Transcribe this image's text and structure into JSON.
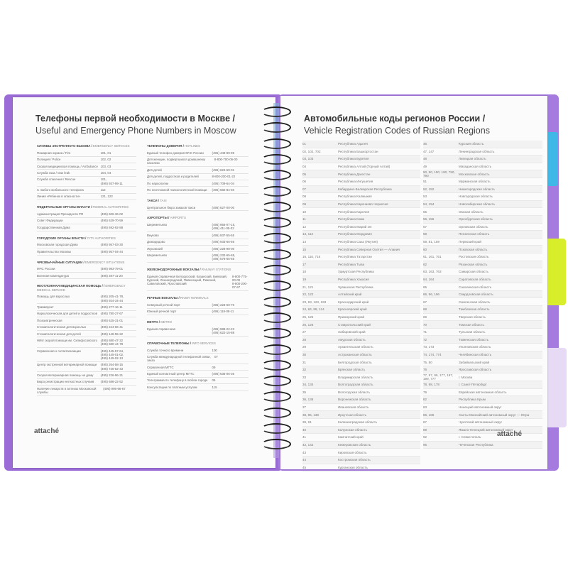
{
  "colors": {
    "cover": "#9b6cd6",
    "tab_blue": "#3fb8e8",
    "tab_yellow": "#d9ee2a",
    "tab_lilac": "#e6daf5"
  },
  "left_page": {
    "title_ru": "Телефоны первой необходимости в Москве /",
    "title_en": "Useful and Emergency Phone Numbers in Moscow",
    "logo": "attaché",
    "col1": [
      {
        "ru": "СЛУЖБЫ ЭКСТРЕННОГО ВЫЗОВА",
        "en": "EMERGENCY SERVICES",
        "rows": [
          [
            "Пожарная охрана / Fire",
            "101, 01"
          ],
          [
            "Полиция / Police",
            "102, 02"
          ],
          [
            "Скорая медицинская помощь / Ambulance",
            "103, 03"
          ],
          [
            "Служба газа / Gas leak",
            "104, 04"
          ],
          [
            "Служба спасения / Rescue",
            "101,\n(495) 937-99-11"
          ],
          [
            "С любого мобильного телефона",
            "112"
          ],
          [
            "Линия «Ребенок в опасности»",
            "121, 123"
          ]
        ]
      },
      {
        "ru": "ФЕДЕРАЛЬНЫЕ ОРГАНЫ ВЛАСТИ",
        "en": "FEDERAL AUTHORITIES",
        "rows": [
          [
            "Администрация Президента РФ",
            "(495) 606-36-02"
          ],
          [
            "Совет Федерации",
            "(495) 629-70-59"
          ],
          [
            "Государственная Дума",
            "(495) 692-92-88"
          ]
        ]
      },
      {
        "ru": "ГОРОДСКИЕ ОРГАНЫ ВЛАСТИ",
        "en": "CITY AUTHORITIES",
        "rows": [
          [
            "Московская городская Дума",
            "(495) 957-03-30"
          ],
          [
            "Правительство Москвы",
            "(495) 957-04-44"
          ]
        ]
      },
      {
        "ru": "ЧРЕЗВЫЧАЙНЫЕ СИТУАЦИИ",
        "en": "EMERGENCY SITUATIONS",
        "rows": [
          [
            "МЧС России",
            "(495) 983-79-01"
          ],
          [
            "Военная комендатура",
            "(495) 287-11-20"
          ]
        ]
      },
      {
        "ru": "НЕОТЛОЖНАЯ МЕДИЦИНСКАЯ ПОМОЩЬ /",
        "en": "EMERGENCY MEDICAL SERVICE",
        "rows": [
          [
            "Помощь для взрослых",
            "(495) 205-41-78,\n(495) 924-34-44"
          ],
          [
            "Травмпункт",
            "(495) 277-16-11"
          ],
          [
            "Наркологическая для детей и подростков",
            "(495) 780-27-67"
          ],
          [
            "Психиатрическая",
            "(495) 625-31-01"
          ],
          [
            "Стоматологическая для взрослых",
            "(495) 244-66-41"
          ],
          [
            "Стоматологическая для детей",
            "(495) 148-55-22"
          ],
          [
            "НИИ скорой помощи им. Склифосовского",
            "(495) 680-47-22\n(495) 680-44-78"
          ],
          [
            "Справочная о госпитализации",
            "(495) 445-57-64,\n(495) 445-01-02,\n(495) 445-02-13"
          ],
          [
            "Центр экстренной ветеринарной помощи",
            "(495) 264-58-15\n(495) 726-52-43"
          ],
          [
            "Скорая ветеринарная помощь на дому",
            "(495) 226-96-31"
          ],
          [
            "Бюро регистрации несчастных случаев",
            "(495) 688-22-52"
          ],
          [
            "Наличие лекарств в аптеках Московской службы",
            "(495) 995-66-67"
          ]
        ]
      }
    ],
    "col2": [
      {
        "ru": "ТЕЛЕФОНЫ ДОВЕРИЯ",
        "en": "HOTLINES",
        "rows": [
          [
            "Единый телефон доверия МЧС России",
            "(495) 449-99-99"
          ],
          [
            "Для женщин, подвергшихся домашнему насилию",
            "8-800-700-06-00"
          ],
          [
            "Для детей",
            "(495) 624-60-01"
          ],
          [
            "Для детей, подростков и родителей",
            "8-800-200-01-22"
          ],
          [
            "По наркологии",
            "(495) 709-64-04"
          ],
          [
            "По неотложной психологической помощи",
            "(495) 682-84-50"
          ]
        ]
      },
      {
        "ru": "ТАКСИ",
        "en": "TAXI",
        "rows": [
          [
            "Центральное бюро заказов такси",
            "(495) 627-00-00"
          ]
        ]
      },
      {
        "ru": "АЭРОПОРТЫ",
        "en": "AIRPORTS",
        "rows": [
          [
            "Шереметьево",
            "(495) 956-07-15,\n(495) 411-05-32"
          ],
          [
            "Внуково",
            "(495) 937-55-55"
          ],
          [
            "Домодедово",
            "(495) 933-66-66"
          ],
          [
            "Жуковский",
            "(495) 228-98-00"
          ],
          [
            "Шереметьево",
            "(495) 232-65-65,\n(495) 578-65-65"
          ]
        ]
      },
      {
        "ru": "ЖЕЛЕЗНОДОРОЖНЫЕ ВОКЗАЛЫ",
        "en": "RAILWAY STATIONS",
        "rows": [
          [
            "Единая справочная Белорусский, Казанский, Киевский, Курский, Ленинградский, Павелецкий, Рижский, Савеловский, Ярославский",
            "8-800-775-00-00\n8-800-200-07-67"
          ]
        ]
      },
      {
        "ru": "РЕЧНЫЕ ВОКЗАЛЫ",
        "en": "RIVER TERMINALS",
        "rows": [
          [
            "Северный речной порт",
            "(495) 223-60-70"
          ],
          [
            "Южный речной порт",
            "(495) 118-08-11"
          ]
        ]
      },
      {
        "ru": "МЕТРО",
        "en": "METRO",
        "rows": [
          [
            "Единая справочная",
            "(495) 988-22-23\n(495) 622-15-88"
          ]
        ]
      },
      {
        "ru": "СПРАВОЧНЫЕ ТЕЛЕФОНЫ",
        "en": "INFO SERVICES",
        "rows": [
          [
            "Служба точного времени",
            "100"
          ],
          [
            "Служба международной телефонной связи, заказ",
            "07"
          ],
          [
            "Справочная МГТС",
            "09"
          ],
          [
            "Единый контактный центр МГТС",
            "(495) 636-06-36"
          ],
          [
            "Телеграмма по телефону в любом городе",
            "06"
          ],
          [
            "Консультации по платным услугам",
            "115"
          ]
        ]
      }
    ]
  },
  "right_page": {
    "title_ru": "Автомобильные коды регионов России /",
    "title_en": "Vehicle Registration Codes of Russian Regions",
    "logo": "attaché",
    "col1": [
      [
        "01",
        "Республика Адыгея"
      ],
      [
        "02, 102, 702",
        "Республика Башкортостан"
      ],
      [
        "03, 103",
        "Республика Бурятия"
      ],
      [
        "04",
        "Республика Алтай (Горный Алтай)"
      ],
      [
        "05",
        "Республика Дагестан"
      ],
      [
        "06",
        "Республика Ингушетия"
      ],
      [
        "07",
        "Кабардино-Балкарская Республика"
      ],
      [
        "08",
        "Республика Калмыкия"
      ],
      [
        "09",
        "Республика Карачаево-Черкесия"
      ],
      [
        "10",
        "Республика Карелия"
      ],
      [
        "11",
        "Республика Коми"
      ],
      [
        "12",
        "Республика Марий Эл"
      ],
      [
        "13, 113",
        "Республика Мордовия"
      ],
      [
        "14",
        "Республика Саха (Якутия)"
      ],
      [
        "15",
        "Республика Северная Осетия — Алания"
      ],
      [
        "16, 116, 716",
        "Республика Татарстан"
      ],
      [
        "17",
        "Республика Тыва"
      ],
      [
        "18",
        "Удмуртская Республика"
      ],
      [
        "19",
        "Республика Хакасия"
      ],
      [
        "21, 121",
        "Чувашская Республика"
      ],
      [
        "22, 122",
        "Алтайский край"
      ],
      [
        "23, 93, 123, 193",
        "Краснодарский край"
      ],
      [
        "24, 84, 88, 124",
        "Красноярский край"
      ],
      [
        "25, 125",
        "Приморский край"
      ],
      [
        "26, 126",
        "Ставропольский край"
      ],
      [
        "27",
        "Хабаровский край"
      ],
      [
        "28",
        "Амурская область"
      ],
      [
        "29",
        "Архангельская область"
      ],
      [
        "30",
        "Астраханская область"
      ],
      [
        "31",
        "Белгородская область"
      ],
      [
        "32",
        "Брянская область"
      ],
      [
        "33",
        "Владимирская область"
      ],
      [
        "34, 134",
        "Волгоградская область"
      ],
      [
        "35",
        "Вологодская область"
      ],
      [
        "36, 136",
        "Воронежская область"
      ],
      [
        "37",
        "Ивановская область"
      ],
      [
        "38, 85, 138",
        "Иркутская область"
      ],
      [
        "39, 91",
        "Калининградская область"
      ],
      [
        "40",
        "Калужская область"
      ],
      [
        "41",
        "Камчатский край"
      ],
      [
        "42, 142",
        "Кемеровская область"
      ],
      [
        "43",
        "Кировская область"
      ],
      [
        "44",
        "Костромская область"
      ],
      [
        "45",
        "Курганская область"
      ]
    ],
    "col2": [
      [
        "46",
        "Курская область"
      ],
      [
        "47, 147",
        "Ленинградская область"
      ],
      [
        "48",
        "Липецкая область"
      ],
      [
        "49",
        "Магаданская область"
      ],
      [
        "50, 90, 150, 190, 750, 790",
        "Московская область"
      ],
      [
        "51",
        "Мурманская область"
      ],
      [
        "52, 152",
        "Нижегородская область"
      ],
      [
        "53",
        "Новгородская область"
      ],
      [
        "54, 154",
        "Новосибирская область"
      ],
      [
        "55",
        "Омская область"
      ],
      [
        "56, 156",
        "Оренбургская область"
      ],
      [
        "57",
        "Орловская область"
      ],
      [
        "58",
        "Пензенская область"
      ],
      [
        "59, 81, 159",
        "Пермский край"
      ],
      [
        "60",
        "Псковская область"
      ],
      [
        "61, 161, 761",
        "Ростовская область"
      ],
      [
        "62",
        "Рязанская область"
      ],
      [
        "63, 163, 763",
        "Самарская область"
      ],
      [
        "64, 164",
        "Саратовская область"
      ],
      [
        "65",
        "Сахалинская область"
      ],
      [
        "66, 96, 196",
        "Свердловская область"
      ],
      [
        "67",
        "Смоленская область"
      ],
      [
        "68",
        "Тамбовская область"
      ],
      [
        "69",
        "Тверская область"
      ],
      [
        "70",
        "Томская область"
      ],
      [
        "71",
        "Тульская область"
      ],
      [
        "72",
        "Тюменская область"
      ],
      [
        "73, 173",
        "Ульяновская область"
      ],
      [
        "74, 174, 774",
        "Челябинская область"
      ],
      [
        "75, 80",
        "Забайкальский край"
      ],
      [
        "76",
        "Ярославская область"
      ],
      [
        "77, 97, 99, 177, 197, 199, 777",
        "г. Москва"
      ],
      [
        "78, 98, 178",
        "г. Санкт-Петербург"
      ],
      [
        "79",
        "Еврейская автономная область"
      ],
      [
        "82",
        "Республика Крым"
      ],
      [
        "83",
        "Ненецкий автономный округ"
      ],
      [
        "86, 186",
        "Ханты-Мансийский автономный округ — Югра"
      ],
      [
        "87",
        "Чукотский автономный округ"
      ],
      [
        "89",
        "Ямало-Ненецкий автономный округ"
      ],
      [
        "92",
        "г. Севастополь"
      ],
      [
        "95",
        "Чеченская Республика"
      ]
    ]
  }
}
